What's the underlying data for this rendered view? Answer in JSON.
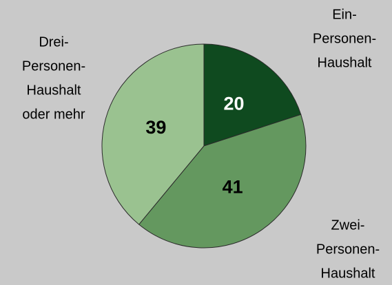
{
  "chart_data": {
    "type": "pie",
    "categories": [
      [
        "Ein-",
        "Personen-",
        "Haushalt"
      ],
      [
        "Zwei-",
        "Personen-",
        "Haushalt"
      ],
      [
        "Drei-",
        "Personen-",
        "Haushalt",
        "oder mehr"
      ]
    ],
    "values": [
      20,
      41,
      39
    ],
    "colors": [
      "#0f4a1f",
      "#64985f",
      "#9ac290"
    ]
  }
}
